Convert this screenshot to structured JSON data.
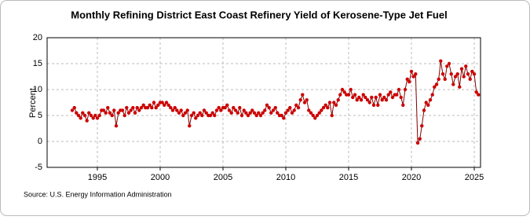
{
  "chart_data": {
    "type": "line",
    "title": "Monthly Refining District East Coast Refinery Yield of Kerosene-Type Jet Fuel",
    "y_label": "Percent",
    "source": "Source: U.S. Energy Information Administration",
    "xlim": [
      1991,
      2025.5
    ],
    "xticks": [
      1995,
      2000,
      2005,
      2010,
      2015,
      2020,
      2025
    ],
    "ylim": [
      -5,
      20
    ],
    "yticks": [
      -5,
      0,
      5,
      10,
      15,
      20
    ],
    "grid": true,
    "x": [
      1993,
      1993.17,
      1993.33,
      1993.5,
      1993.67,
      1993.83,
      1994,
      1994.17,
      1994.33,
      1994.5,
      1994.67,
      1994.83,
      1995,
      1995.17,
      1995.33,
      1995.5,
      1995.67,
      1995.83,
      1996,
      1996.17,
      1996.33,
      1996.5,
      1996.67,
      1996.83,
      1997,
      1997.17,
      1997.33,
      1997.5,
      1997.67,
      1997.83,
      1998,
      1998.17,
      1998.33,
      1998.5,
      1998.67,
      1998.83,
      1999,
      1999.17,
      1999.33,
      1999.5,
      1999.67,
      1999.83,
      2000,
      2000.17,
      2000.33,
      2000.5,
      2000.67,
      2000.83,
      2001,
      2001.17,
      2001.33,
      2001.5,
      2001.67,
      2001.83,
      2002,
      2002.17,
      2002.33,
      2002.5,
      2002.67,
      2002.83,
      2003,
      2003.17,
      2003.33,
      2003.5,
      2003.67,
      2003.83,
      2004,
      2004.17,
      2004.33,
      2004.5,
      2004.67,
      2004.83,
      2005,
      2005.17,
      2005.33,
      2005.5,
      2005.67,
      2005.83,
      2006,
      2006.17,
      2006.33,
      2006.5,
      2006.67,
      2006.83,
      2007,
      2007.17,
      2007.33,
      2007.5,
      2007.67,
      2007.83,
      2008,
      2008.17,
      2008.33,
      2008.5,
      2008.67,
      2008.83,
      2009,
      2009.17,
      2009.33,
      2009.5,
      2009.67,
      2009.83,
      2010,
      2010.17,
      2010.33,
      2010.5,
      2010.67,
      2010.83,
      2011,
      2011.17,
      2011.33,
      2011.5,
      2011.67,
      2011.83,
      2012,
      2012.17,
      2012.33,
      2012.5,
      2012.67,
      2012.83,
      2013,
      2013.17,
      2013.33,
      2013.5,
      2013.67,
      2013.83,
      2014,
      2014.17,
      2014.33,
      2014.5,
      2014.67,
      2014.83,
      2015,
      2015.17,
      2015.33,
      2015.5,
      2015.67,
      2015.83,
      2016,
      2016.17,
      2016.33,
      2016.5,
      2016.67,
      2016.83,
      2017,
      2017.17,
      2017.33,
      2017.5,
      2017.67,
      2017.83,
      2018,
      2018.17,
      2018.33,
      2018.5,
      2018.67,
      2018.83,
      2019,
      2019.17,
      2019.33,
      2019.5,
      2019.67,
      2019.83,
      2020,
      2020.17,
      2020.33,
      2020.5,
      2020.67,
      2020.83,
      2021,
      2021.17,
      2021.33,
      2021.5,
      2021.67,
      2021.83,
      2022,
      2022.17,
      2022.33,
      2022.5,
      2022.67,
      2022.83,
      2023,
      2023.17,
      2023.33,
      2023.5,
      2023.67,
      2023.83,
      2024,
      2024.17,
      2024.33,
      2024.5,
      2024.67,
      2024.83,
      2025,
      2025.17,
      2025.33
    ],
    "series": [
      {
        "color": "#cc0000",
        "values": [
          6,
          6.5,
          5.5,
          5,
          4.5,
          5.5,
          5,
          4,
          5.5,
          5,
          4.5,
          5,
          4.5,
          5,
          6,
          6,
          5.5,
          6.5,
          5.5,
          5,
          6,
          3,
          5.5,
          6,
          6,
          5,
          6.5,
          5.5,
          6,
          6.5,
          5.5,
          6.5,
          6,
          6.5,
          7,
          6.5,
          6.5,
          7,
          6.5,
          7.5,
          6.5,
          7,
          7.5,
          7.5,
          7,
          7.5,
          7,
          6.5,
          6,
          6.5,
          6,
          5.5,
          6,
          5,
          5.5,
          6,
          3,
          5,
          5.5,
          4.5,
          5,
          5.5,
          5,
          6,
          5.5,
          5,
          5,
          5.5,
          5,
          6,
          6.5,
          6,
          6.5,
          6.5,
          7,
          6,
          5.5,
          6.5,
          6,
          5.5,
          6.5,
          5,
          6,
          5.5,
          5,
          5.5,
          6,
          5.5,
          5,
          5.5,
          5,
          5.5,
          6,
          7,
          6.5,
          5.5,
          6,
          6.5,
          5.5,
          5,
          5,
          4.5,
          5.5,
          6,
          6.5,
          5.5,
          6,
          7,
          6.5,
          8,
          9,
          7.5,
          8,
          6,
          5.5,
          5,
          4.5,
          5,
          5.5,
          6,
          6.5,
          7,
          6.5,
          7.5,
          5,
          7.5,
          7,
          8,
          9,
          10,
          9.5,
          9,
          9,
          10,
          8.5,
          9,
          8,
          8.5,
          8,
          9,
          8.5,
          8,
          7.5,
          8.5,
          7,
          8.5,
          7,
          9,
          8,
          8.5,
          8,
          9,
          9.5,
          8.5,
          9,
          9,
          10,
          8.5,
          7,
          10,
          12,
          11.5,
          13.5,
          12.5,
          13,
          -0.3,
          0.5,
          3,
          6,
          7.5,
          7,
          8,
          9,
          10.5,
          11,
          12,
          15.5,
          13,
          12,
          14.5,
          15,
          13,
          11,
          12.5,
          13,
          10.5,
          14,
          12.5,
          14.5,
          13,
          12,
          13.5,
          13,
          9.5,
          9
        ]
      }
    ]
  }
}
